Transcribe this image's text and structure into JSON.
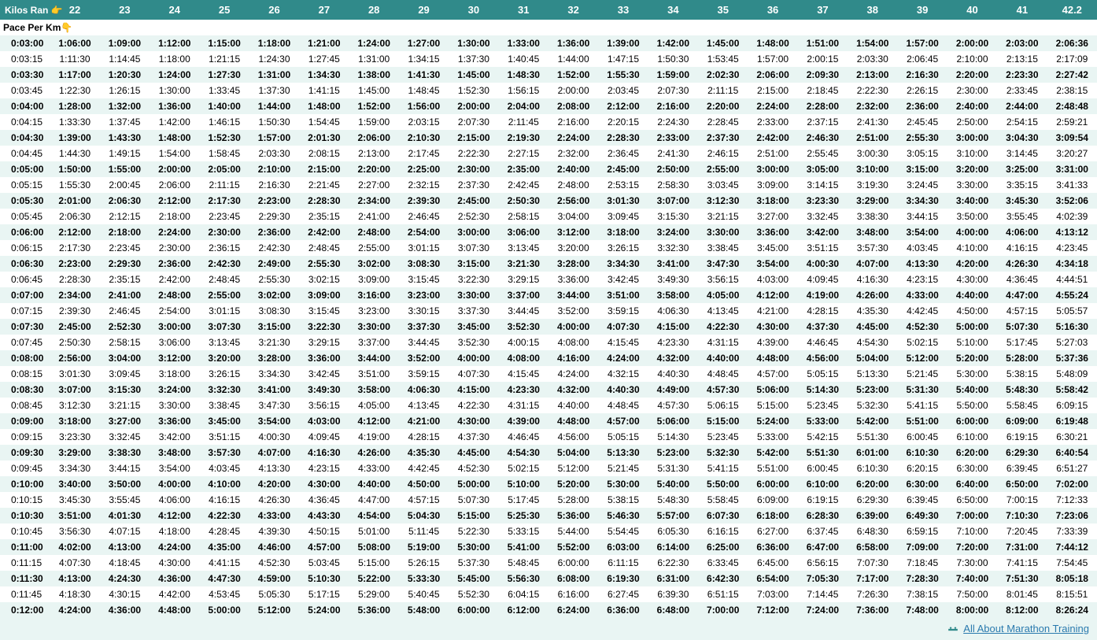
{
  "header": {
    "corner_label": "Kilos Ran",
    "corner_icon": "👉",
    "distances": [
      "22",
      "23",
      "24",
      "25",
      "26",
      "27",
      "28",
      "29",
      "30",
      "31",
      "32",
      "33",
      "34",
      "35",
      "36",
      "37",
      "38",
      "39",
      "40",
      "41",
      "42.2"
    ]
  },
  "pace_label_row": {
    "label": "Pace Per Km",
    "icon": "👇"
  },
  "colors": {
    "header_bg": "#308a8a",
    "header_fg": "#ffffff",
    "row_even_bg": "#e9f5f3",
    "row_odd_bg": "#ffffff",
    "link_color": "#2a7aae"
  },
  "footer": {
    "link_text": "All About Marathon Training"
  },
  "paces": [
    {
      "pace": "0:03:00",
      "bold": true,
      "times": [
        "1:06:00",
        "1:09:00",
        "1:12:00",
        "1:15:00",
        "1:18:00",
        "1:21:00",
        "1:24:00",
        "1:27:00",
        "1:30:00",
        "1:33:00",
        "1:36:00",
        "1:39:00",
        "1:42:00",
        "1:45:00",
        "1:48:00",
        "1:51:00",
        "1:54:00",
        "1:57:00",
        "2:00:00",
        "2:03:00",
        "2:06:36"
      ]
    },
    {
      "pace": "0:03:15",
      "bold": false,
      "times": [
        "1:11:30",
        "1:14:45",
        "1:18:00",
        "1:21:15",
        "1:24:30",
        "1:27:45",
        "1:31:00",
        "1:34:15",
        "1:37:30",
        "1:40:45",
        "1:44:00",
        "1:47:15",
        "1:50:30",
        "1:53:45",
        "1:57:00",
        "2:00:15",
        "2:03:30",
        "2:06:45",
        "2:10:00",
        "2:13:15",
        "2:17:09"
      ]
    },
    {
      "pace": "0:03:30",
      "bold": true,
      "times": [
        "1:17:00",
        "1:20:30",
        "1:24:00",
        "1:27:30",
        "1:31:00",
        "1:34:30",
        "1:38:00",
        "1:41:30",
        "1:45:00",
        "1:48:30",
        "1:52:00",
        "1:55:30",
        "1:59:00",
        "2:02:30",
        "2:06:00",
        "2:09:30",
        "2:13:00",
        "2:16:30",
        "2:20:00",
        "2:23:30",
        "2:27:42"
      ]
    },
    {
      "pace": "0:03:45",
      "bold": false,
      "times": [
        "1:22:30",
        "1:26:15",
        "1:30:00",
        "1:33:45",
        "1:37:30",
        "1:41:15",
        "1:45:00",
        "1:48:45",
        "1:52:30",
        "1:56:15",
        "2:00:00",
        "2:03:45",
        "2:07:30",
        "2:11:15",
        "2:15:00",
        "2:18:45",
        "2:22:30",
        "2:26:15",
        "2:30:00",
        "2:33:45",
        "2:38:15"
      ]
    },
    {
      "pace": "0:04:00",
      "bold": true,
      "times": [
        "1:28:00",
        "1:32:00",
        "1:36:00",
        "1:40:00",
        "1:44:00",
        "1:48:00",
        "1:52:00",
        "1:56:00",
        "2:00:00",
        "2:04:00",
        "2:08:00",
        "2:12:00",
        "2:16:00",
        "2:20:00",
        "2:24:00",
        "2:28:00",
        "2:32:00",
        "2:36:00",
        "2:40:00",
        "2:44:00",
        "2:48:48"
      ]
    },
    {
      "pace": "0:04:15",
      "bold": false,
      "times": [
        "1:33:30",
        "1:37:45",
        "1:42:00",
        "1:46:15",
        "1:50:30",
        "1:54:45",
        "1:59:00",
        "2:03:15",
        "2:07:30",
        "2:11:45",
        "2:16:00",
        "2:20:15",
        "2:24:30",
        "2:28:45",
        "2:33:00",
        "2:37:15",
        "2:41:30",
        "2:45:45",
        "2:50:00",
        "2:54:15",
        "2:59:21"
      ]
    },
    {
      "pace": "0:04:30",
      "bold": true,
      "times": [
        "1:39:00",
        "1:43:30",
        "1:48:00",
        "1:52:30",
        "1:57:00",
        "2:01:30",
        "2:06:00",
        "2:10:30",
        "2:15:00",
        "2:19:30",
        "2:24:00",
        "2:28:30",
        "2:33:00",
        "2:37:30",
        "2:42:00",
        "2:46:30",
        "2:51:00",
        "2:55:30",
        "3:00:00",
        "3:04:30",
        "3:09:54"
      ]
    },
    {
      "pace": "0:04:45",
      "bold": false,
      "times": [
        "1:44:30",
        "1:49:15",
        "1:54:00",
        "1:58:45",
        "2:03:30",
        "2:08:15",
        "2:13:00",
        "2:17:45",
        "2:22:30",
        "2:27:15",
        "2:32:00",
        "2:36:45",
        "2:41:30",
        "2:46:15",
        "2:51:00",
        "2:55:45",
        "3:00:30",
        "3:05:15",
        "3:10:00",
        "3:14:45",
        "3:20:27"
      ]
    },
    {
      "pace": "0:05:00",
      "bold": true,
      "times": [
        "1:50:00",
        "1:55:00",
        "2:00:00",
        "2:05:00",
        "2:10:00",
        "2:15:00",
        "2:20:00",
        "2:25:00",
        "2:30:00",
        "2:35:00",
        "2:40:00",
        "2:45:00",
        "2:50:00",
        "2:55:00",
        "3:00:00",
        "3:05:00",
        "3:10:00",
        "3:15:00",
        "3:20:00",
        "3:25:00",
        "3:31:00"
      ]
    },
    {
      "pace": "0:05:15",
      "bold": false,
      "times": [
        "1:55:30",
        "2:00:45",
        "2:06:00",
        "2:11:15",
        "2:16:30",
        "2:21:45",
        "2:27:00",
        "2:32:15",
        "2:37:30",
        "2:42:45",
        "2:48:00",
        "2:53:15",
        "2:58:30",
        "3:03:45",
        "3:09:00",
        "3:14:15",
        "3:19:30",
        "3:24:45",
        "3:30:00",
        "3:35:15",
        "3:41:33"
      ]
    },
    {
      "pace": "0:05:30",
      "bold": true,
      "times": [
        "2:01:00",
        "2:06:30",
        "2:12:00",
        "2:17:30",
        "2:23:00",
        "2:28:30",
        "2:34:00",
        "2:39:30",
        "2:45:00",
        "2:50:30",
        "2:56:00",
        "3:01:30",
        "3:07:00",
        "3:12:30",
        "3:18:00",
        "3:23:30",
        "3:29:00",
        "3:34:30",
        "3:40:00",
        "3:45:30",
        "3:52:06"
      ]
    },
    {
      "pace": "0:05:45",
      "bold": false,
      "times": [
        "2:06:30",
        "2:12:15",
        "2:18:00",
        "2:23:45",
        "2:29:30",
        "2:35:15",
        "2:41:00",
        "2:46:45",
        "2:52:30",
        "2:58:15",
        "3:04:00",
        "3:09:45",
        "3:15:30",
        "3:21:15",
        "3:27:00",
        "3:32:45",
        "3:38:30",
        "3:44:15",
        "3:50:00",
        "3:55:45",
        "4:02:39"
      ]
    },
    {
      "pace": "0:06:00",
      "bold": true,
      "times": [
        "2:12:00",
        "2:18:00",
        "2:24:00",
        "2:30:00",
        "2:36:00",
        "2:42:00",
        "2:48:00",
        "2:54:00",
        "3:00:00",
        "3:06:00",
        "3:12:00",
        "3:18:00",
        "3:24:00",
        "3:30:00",
        "3:36:00",
        "3:42:00",
        "3:48:00",
        "3:54:00",
        "4:00:00",
        "4:06:00",
        "4:13:12"
      ]
    },
    {
      "pace": "0:06:15",
      "bold": false,
      "times": [
        "2:17:30",
        "2:23:45",
        "2:30:00",
        "2:36:15",
        "2:42:30",
        "2:48:45",
        "2:55:00",
        "3:01:15",
        "3:07:30",
        "3:13:45",
        "3:20:00",
        "3:26:15",
        "3:32:30",
        "3:38:45",
        "3:45:00",
        "3:51:15",
        "3:57:30",
        "4:03:45",
        "4:10:00",
        "4:16:15",
        "4:23:45"
      ]
    },
    {
      "pace": "0:06:30",
      "bold": true,
      "times": [
        "2:23:00",
        "2:29:30",
        "2:36:00",
        "2:42:30",
        "2:49:00",
        "2:55:30",
        "3:02:00",
        "3:08:30",
        "3:15:00",
        "3:21:30",
        "3:28:00",
        "3:34:30",
        "3:41:00",
        "3:47:30",
        "3:54:00",
        "4:00:30",
        "4:07:00",
        "4:13:30",
        "4:20:00",
        "4:26:30",
        "4:34:18"
      ]
    },
    {
      "pace": "0:06:45",
      "bold": false,
      "times": [
        "2:28:30",
        "2:35:15",
        "2:42:00",
        "2:48:45",
        "2:55:30",
        "3:02:15",
        "3:09:00",
        "3:15:45",
        "3:22:30",
        "3:29:15",
        "3:36:00",
        "3:42:45",
        "3:49:30",
        "3:56:15",
        "4:03:00",
        "4:09:45",
        "4:16:30",
        "4:23:15",
        "4:30:00",
        "4:36:45",
        "4:44:51"
      ]
    },
    {
      "pace": "0:07:00",
      "bold": true,
      "times": [
        "2:34:00",
        "2:41:00",
        "2:48:00",
        "2:55:00",
        "3:02:00",
        "3:09:00",
        "3:16:00",
        "3:23:00",
        "3:30:00",
        "3:37:00",
        "3:44:00",
        "3:51:00",
        "3:58:00",
        "4:05:00",
        "4:12:00",
        "4:19:00",
        "4:26:00",
        "4:33:00",
        "4:40:00",
        "4:47:00",
        "4:55:24"
      ]
    },
    {
      "pace": "0:07:15",
      "bold": false,
      "times": [
        "2:39:30",
        "2:46:45",
        "2:54:00",
        "3:01:15",
        "3:08:30",
        "3:15:45",
        "3:23:00",
        "3:30:15",
        "3:37:30",
        "3:44:45",
        "3:52:00",
        "3:59:15",
        "4:06:30",
        "4:13:45",
        "4:21:00",
        "4:28:15",
        "4:35:30",
        "4:42:45",
        "4:50:00",
        "4:57:15",
        "5:05:57"
      ]
    },
    {
      "pace": "0:07:30",
      "bold": true,
      "times": [
        "2:45:00",
        "2:52:30",
        "3:00:00",
        "3:07:30",
        "3:15:00",
        "3:22:30",
        "3:30:00",
        "3:37:30",
        "3:45:00",
        "3:52:30",
        "4:00:00",
        "4:07:30",
        "4:15:00",
        "4:22:30",
        "4:30:00",
        "4:37:30",
        "4:45:00",
        "4:52:30",
        "5:00:00",
        "5:07:30",
        "5:16:30"
      ]
    },
    {
      "pace": "0:07:45",
      "bold": false,
      "times": [
        "2:50:30",
        "2:58:15",
        "3:06:00",
        "3:13:45",
        "3:21:30",
        "3:29:15",
        "3:37:00",
        "3:44:45",
        "3:52:30",
        "4:00:15",
        "4:08:00",
        "4:15:45",
        "4:23:30",
        "4:31:15",
        "4:39:00",
        "4:46:45",
        "4:54:30",
        "5:02:15",
        "5:10:00",
        "5:17:45",
        "5:27:03"
      ]
    },
    {
      "pace": "0:08:00",
      "bold": true,
      "times": [
        "2:56:00",
        "3:04:00",
        "3:12:00",
        "3:20:00",
        "3:28:00",
        "3:36:00",
        "3:44:00",
        "3:52:00",
        "4:00:00",
        "4:08:00",
        "4:16:00",
        "4:24:00",
        "4:32:00",
        "4:40:00",
        "4:48:00",
        "4:56:00",
        "5:04:00",
        "5:12:00",
        "5:20:00",
        "5:28:00",
        "5:37:36"
      ]
    },
    {
      "pace": "0:08:15",
      "bold": false,
      "times": [
        "3:01:30",
        "3:09:45",
        "3:18:00",
        "3:26:15",
        "3:34:30",
        "3:42:45",
        "3:51:00",
        "3:59:15",
        "4:07:30",
        "4:15:45",
        "4:24:00",
        "4:32:15",
        "4:40:30",
        "4:48:45",
        "4:57:00",
        "5:05:15",
        "5:13:30",
        "5:21:45",
        "5:30:00",
        "5:38:15",
        "5:48:09"
      ]
    },
    {
      "pace": "0:08:30",
      "bold": true,
      "times": [
        "3:07:00",
        "3:15:30",
        "3:24:00",
        "3:32:30",
        "3:41:00",
        "3:49:30",
        "3:58:00",
        "4:06:30",
        "4:15:00",
        "4:23:30",
        "4:32:00",
        "4:40:30",
        "4:49:00",
        "4:57:30",
        "5:06:00",
        "5:14:30",
        "5:23:00",
        "5:31:30",
        "5:40:00",
        "5:48:30",
        "5:58:42"
      ]
    },
    {
      "pace": "0:08:45",
      "bold": false,
      "times": [
        "3:12:30",
        "3:21:15",
        "3:30:00",
        "3:38:45",
        "3:47:30",
        "3:56:15",
        "4:05:00",
        "4:13:45",
        "4:22:30",
        "4:31:15",
        "4:40:00",
        "4:48:45",
        "4:57:30",
        "5:06:15",
        "5:15:00",
        "5:23:45",
        "5:32:30",
        "5:41:15",
        "5:50:00",
        "5:58:45",
        "6:09:15"
      ]
    },
    {
      "pace": "0:09:00",
      "bold": true,
      "times": [
        "3:18:00",
        "3:27:00",
        "3:36:00",
        "3:45:00",
        "3:54:00",
        "4:03:00",
        "4:12:00",
        "4:21:00",
        "4:30:00",
        "4:39:00",
        "4:48:00",
        "4:57:00",
        "5:06:00",
        "5:15:00",
        "5:24:00",
        "5:33:00",
        "5:42:00",
        "5:51:00",
        "6:00:00",
        "6:09:00",
        "6:19:48"
      ]
    },
    {
      "pace": "0:09:15",
      "bold": false,
      "times": [
        "3:23:30",
        "3:32:45",
        "3:42:00",
        "3:51:15",
        "4:00:30",
        "4:09:45",
        "4:19:00",
        "4:28:15",
        "4:37:30",
        "4:46:45",
        "4:56:00",
        "5:05:15",
        "5:14:30",
        "5:23:45",
        "5:33:00",
        "5:42:15",
        "5:51:30",
        "6:00:45",
        "6:10:00",
        "6:19:15",
        "6:30:21"
      ]
    },
    {
      "pace": "0:09:30",
      "bold": true,
      "times": [
        "3:29:00",
        "3:38:30",
        "3:48:00",
        "3:57:30",
        "4:07:00",
        "4:16:30",
        "4:26:00",
        "4:35:30",
        "4:45:00",
        "4:54:30",
        "5:04:00",
        "5:13:30",
        "5:23:00",
        "5:32:30",
        "5:42:00",
        "5:51:30",
        "6:01:00",
        "6:10:30",
        "6:20:00",
        "6:29:30",
        "6:40:54"
      ]
    },
    {
      "pace": "0:09:45",
      "bold": false,
      "times": [
        "3:34:30",
        "3:44:15",
        "3:54:00",
        "4:03:45",
        "4:13:30",
        "4:23:15",
        "4:33:00",
        "4:42:45",
        "4:52:30",
        "5:02:15",
        "5:12:00",
        "5:21:45",
        "5:31:30",
        "5:41:15",
        "5:51:00",
        "6:00:45",
        "6:10:30",
        "6:20:15",
        "6:30:00",
        "6:39:45",
        "6:51:27"
      ]
    },
    {
      "pace": "0:10:00",
      "bold": true,
      "times": [
        "3:40:00",
        "3:50:00",
        "4:00:00",
        "4:10:00",
        "4:20:00",
        "4:30:00",
        "4:40:00",
        "4:50:00",
        "5:00:00",
        "5:10:00",
        "5:20:00",
        "5:30:00",
        "5:40:00",
        "5:50:00",
        "6:00:00",
        "6:10:00",
        "6:20:00",
        "6:30:00",
        "6:40:00",
        "6:50:00",
        "7:02:00"
      ]
    },
    {
      "pace": "0:10:15",
      "bold": false,
      "times": [
        "3:45:30",
        "3:55:45",
        "4:06:00",
        "4:16:15",
        "4:26:30",
        "4:36:45",
        "4:47:00",
        "4:57:15",
        "5:07:30",
        "5:17:45",
        "5:28:00",
        "5:38:15",
        "5:48:30",
        "5:58:45",
        "6:09:00",
        "6:19:15",
        "6:29:30",
        "6:39:45",
        "6:50:00",
        "7:00:15",
        "7:12:33"
      ]
    },
    {
      "pace": "0:10:30",
      "bold": true,
      "times": [
        "3:51:00",
        "4:01:30",
        "4:12:00",
        "4:22:30",
        "4:33:00",
        "4:43:30",
        "4:54:00",
        "5:04:30",
        "5:15:00",
        "5:25:30",
        "5:36:00",
        "5:46:30",
        "5:57:00",
        "6:07:30",
        "6:18:00",
        "6:28:30",
        "6:39:00",
        "6:49:30",
        "7:00:00",
        "7:10:30",
        "7:23:06"
      ]
    },
    {
      "pace": "0:10:45",
      "bold": false,
      "times": [
        "3:56:30",
        "4:07:15",
        "4:18:00",
        "4:28:45",
        "4:39:30",
        "4:50:15",
        "5:01:00",
        "5:11:45",
        "5:22:30",
        "5:33:15",
        "5:44:00",
        "5:54:45",
        "6:05:30",
        "6:16:15",
        "6:27:00",
        "6:37:45",
        "6:48:30",
        "6:59:15",
        "7:10:00",
        "7:20:45",
        "7:33:39"
      ]
    },
    {
      "pace": "0:11:00",
      "bold": true,
      "times": [
        "4:02:00",
        "4:13:00",
        "4:24:00",
        "4:35:00",
        "4:46:00",
        "4:57:00",
        "5:08:00",
        "5:19:00",
        "5:30:00",
        "5:41:00",
        "5:52:00",
        "6:03:00",
        "6:14:00",
        "6:25:00",
        "6:36:00",
        "6:47:00",
        "6:58:00",
        "7:09:00",
        "7:20:00",
        "7:31:00",
        "7:44:12"
      ]
    },
    {
      "pace": "0:11:15",
      "bold": false,
      "times": [
        "4:07:30",
        "4:18:45",
        "4:30:00",
        "4:41:15",
        "4:52:30",
        "5:03:45",
        "5:15:00",
        "5:26:15",
        "5:37:30",
        "5:48:45",
        "6:00:00",
        "6:11:15",
        "6:22:30",
        "6:33:45",
        "6:45:00",
        "6:56:15",
        "7:07:30",
        "7:18:45",
        "7:30:00",
        "7:41:15",
        "7:54:45"
      ]
    },
    {
      "pace": "0:11:30",
      "bold": true,
      "times": [
        "4:13:00",
        "4:24:30",
        "4:36:00",
        "4:47:30",
        "4:59:00",
        "5:10:30",
        "5:22:00",
        "5:33:30",
        "5:45:00",
        "5:56:30",
        "6:08:00",
        "6:19:30",
        "6:31:00",
        "6:42:30",
        "6:54:00",
        "7:05:30",
        "7:17:00",
        "7:28:30",
        "7:40:00",
        "7:51:30",
        "8:05:18"
      ]
    },
    {
      "pace": "0:11:45",
      "bold": false,
      "times": [
        "4:18:30",
        "4:30:15",
        "4:42:00",
        "4:53:45",
        "5:05:30",
        "5:17:15",
        "5:29:00",
        "5:40:45",
        "5:52:30",
        "6:04:15",
        "6:16:00",
        "6:27:45",
        "6:39:30",
        "6:51:15",
        "7:03:00",
        "7:14:45",
        "7:26:30",
        "7:38:15",
        "7:50:00",
        "8:01:45",
        "8:15:51"
      ]
    },
    {
      "pace": "0:12:00",
      "bold": true,
      "times": [
        "4:24:00",
        "4:36:00",
        "4:48:00",
        "5:00:00",
        "5:12:00",
        "5:24:00",
        "5:36:00",
        "5:48:00",
        "6:00:00",
        "6:12:00",
        "6:24:00",
        "6:36:00",
        "6:48:00",
        "7:00:00",
        "7:12:00",
        "7:24:00",
        "7:36:00",
        "7:48:00",
        "8:00:00",
        "8:12:00",
        "8:26:24"
      ]
    }
  ]
}
